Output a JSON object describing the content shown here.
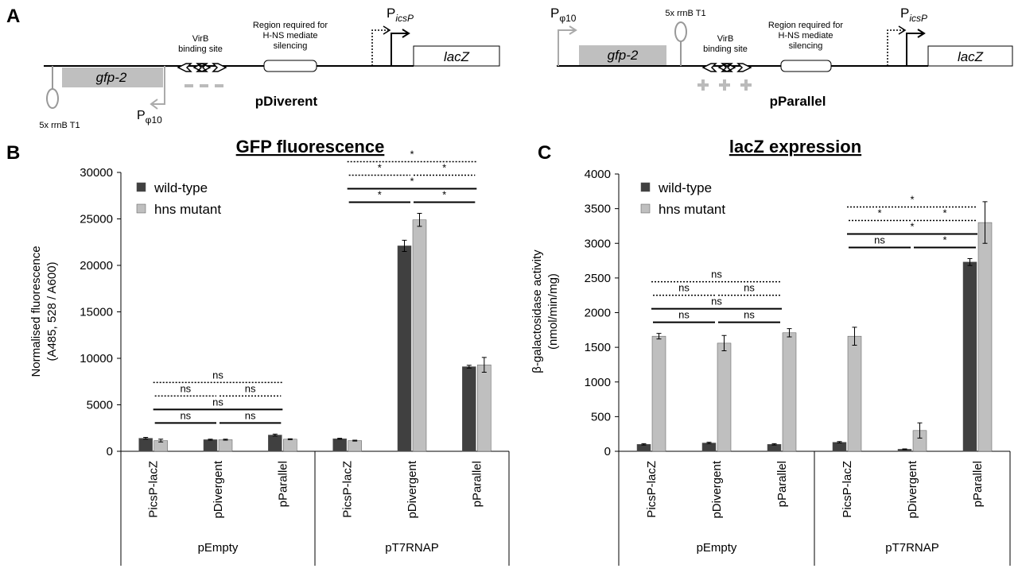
{
  "diagram": {
    "label": "A",
    "left": {
      "name": "pDiverent",
      "gfp": "gfp-2",
      "lacz": "lacZ",
      "terminator": "5x rrnB T1",
      "virb": [
        "VirB",
        "binding site"
      ],
      "region": [
        "Region required for",
        "H-NS mediate",
        "silencing"
      ],
      "promoter_t7": {
        "main": "P",
        "sub": "φ10"
      },
      "promoter_icsp": {
        "main": "P",
        "sub": "icsP"
      }
    },
    "right": {
      "name": "pParallel",
      "gfp": "gfp-2",
      "lacz": "lacZ",
      "terminator": "5x rrnB T1",
      "virb": [
        "VirB",
        "binding site"
      ],
      "region": [
        "Region required for",
        "H-NS mediate",
        "silencing"
      ],
      "promoter_t7": {
        "main": "P",
        "sub": "φ10"
      },
      "promoter_icsp": {
        "main": "P",
        "sub": "icsP"
      }
    }
  },
  "chart_data": [
    {
      "type": "bar",
      "panel": "B",
      "title": "GFP fluorescence",
      "y_label": [
        "Normalised fluorescence",
        "(A485,  528 / A600)"
      ],
      "categories": [
        "PicsP-lacZ",
        "pDivergent",
        "pParallel",
        "PicsP-lacZ",
        "pDivergent",
        "pParallel"
      ],
      "groups": [
        "pEmpty",
        "pT7RNAP"
      ],
      "series": [
        {
          "name": "wild-type",
          "color": "#404040",
          "values": [
            1400,
            1250,
            1750,
            1350,
            22100,
            9100
          ],
          "errors": [
            100,
            50,
            100,
            50,
            600,
            150
          ]
        },
        {
          "name": "hns mutant",
          "color": "#bfbfbf",
          "values": [
            1150,
            1250,
            1300,
            1150,
            24900,
            9300
          ],
          "errors": [
            150,
            50,
            50,
            50,
            700,
            800
          ]
        }
      ],
      "ylim": [
        0,
        30000
      ],
      "yticks": [
        0,
        5000,
        10000,
        15000,
        20000,
        25000,
        30000
      ],
      "annotations": [
        {
          "from": 0,
          "to": 1,
          "series": 0,
          "label": "ns"
        },
        {
          "from": 1,
          "to": 2,
          "series": 0,
          "label": "ns"
        },
        {
          "from": 0,
          "to": 2,
          "series": 0,
          "label": "ns"
        },
        {
          "from": 0,
          "to": 1,
          "series": 1,
          "label": "ns"
        },
        {
          "from": 1,
          "to": 2,
          "series": 1,
          "label": "ns"
        },
        {
          "from": 0,
          "to": 2,
          "series": 1,
          "label": "ns"
        },
        {
          "from": 3,
          "to": 4,
          "series": 0,
          "label": "*"
        },
        {
          "from": 4,
          "to": 5,
          "series": 0,
          "label": "*"
        },
        {
          "from": 3,
          "to": 5,
          "series": 0,
          "label": "*"
        },
        {
          "from": 3,
          "to": 4,
          "series": 1,
          "label": "*"
        },
        {
          "from": 4,
          "to": 5,
          "series": 1,
          "label": "*"
        },
        {
          "from": 3,
          "to": 5,
          "series": 1,
          "label": "*"
        }
      ]
    },
    {
      "type": "bar",
      "panel": "C",
      "title": "lacZ expression",
      "y_label": [
        "β-galactosidase activity",
        "(nmol/min/mg)"
      ],
      "categories": [
        "PicsP-lacZ",
        "pDivergent",
        "pParallel",
        "PicsP-lacZ",
        "pDivergent",
        "pParallel"
      ],
      "groups": [
        "pEmpty",
        "pT7RNAP"
      ],
      "series": [
        {
          "name": "wild-type",
          "color": "#404040",
          "values": [
            100,
            120,
            100,
            130,
            30,
            2730
          ],
          "errors": [
            10,
            10,
            10,
            10,
            5,
            50
          ]
        },
        {
          "name": "hns mutant",
          "color": "#bfbfbf",
          "values": [
            1660,
            1560,
            1710,
            1660,
            300,
            3300
          ],
          "errors": [
            40,
            110,
            60,
            130,
            110,
            300
          ]
        }
      ],
      "ylim": [
        0,
        4000
      ],
      "yticks": [
        0,
        500,
        1000,
        1500,
        2000,
        2500,
        3000,
        3500,
        4000
      ],
      "annotations": [
        {
          "from": 0,
          "to": 1,
          "series": 0,
          "label": "ns"
        },
        {
          "from": 1,
          "to": 2,
          "series": 0,
          "label": "ns"
        },
        {
          "from": 0,
          "to": 2,
          "series": 0,
          "label": "ns"
        },
        {
          "from": 0,
          "to": 1,
          "series": 1,
          "label": "ns"
        },
        {
          "from": 1,
          "to": 2,
          "series": 1,
          "label": "ns"
        },
        {
          "from": 0,
          "to": 2,
          "series": 1,
          "label": "ns"
        },
        {
          "from": 3,
          "to": 4,
          "series": 0,
          "label": "ns"
        },
        {
          "from": 4,
          "to": 5,
          "series": 0,
          "label": "*"
        },
        {
          "from": 3,
          "to": 5,
          "series": 0,
          "label": "*"
        },
        {
          "from": 3,
          "to": 4,
          "series": 1,
          "label": "*"
        },
        {
          "from": 4,
          "to": 5,
          "series": 1,
          "label": "*"
        },
        {
          "from": 3,
          "to": 5,
          "series": 1,
          "label": "*"
        }
      ]
    }
  ]
}
